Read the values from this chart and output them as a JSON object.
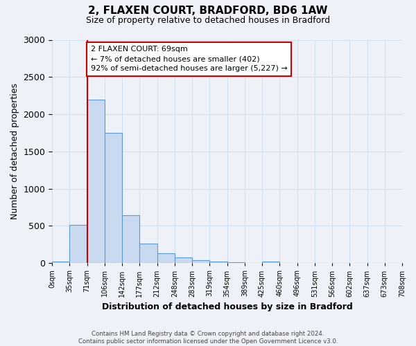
{
  "title": "2, FLAXEN COURT, BRADFORD, BD6 1AW",
  "subtitle": "Size of property relative to detached houses in Bradford",
  "xlabel": "Distribution of detached houses by size in Bradford",
  "ylabel": "Number of detached properties",
  "bin_labels": [
    "0sqm",
    "35sqm",
    "71sqm",
    "106sqm",
    "142sqm",
    "177sqm",
    "212sqm",
    "248sqm",
    "283sqm",
    "319sqm",
    "354sqm",
    "389sqm",
    "425sqm",
    "460sqm",
    "496sqm",
    "531sqm",
    "566sqm",
    "602sqm",
    "637sqm",
    "673sqm",
    "708sqm"
  ],
  "bar_values": [
    20,
    510,
    2200,
    1750,
    640,
    260,
    130,
    75,
    35,
    20,
    10,
    5,
    20,
    5,
    0,
    0,
    0,
    0,
    0,
    0
  ],
  "bar_color": "#c9d9f0",
  "bar_edge_color": "#5b9bd5",
  "property_line_bin_index": 2,
  "annotation_title": "2 FLAXEN COURT: 69sqm",
  "annotation_line1": "← 7% of detached houses are smaller (402)",
  "annotation_line2": "92% of semi-detached houses are larger (5,227) →",
  "annotation_box_color": "#ffffff",
  "annotation_box_edge_color": "#cc0000",
  "vline_color": "#cc0000",
  "ylim": [
    0,
    3000
  ],
  "yticks": [
    0,
    500,
    1000,
    1500,
    2000,
    2500,
    3000
  ],
  "footnote": "Contains HM Land Registry data © Crown copyright and database right 2024.\nContains public sector information licensed under the Open Government Licence v3.0.",
  "grid_color": "#d0e0f0",
  "background_color": "#eef2f8"
}
